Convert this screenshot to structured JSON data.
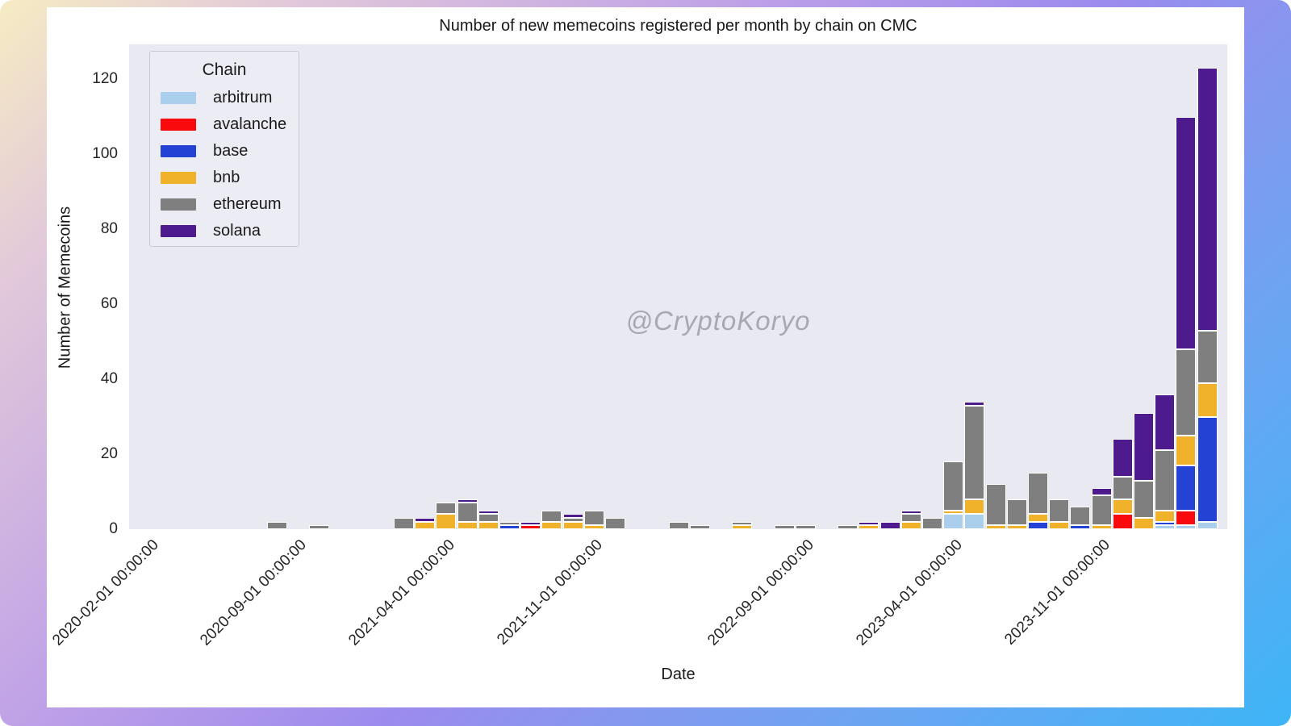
{
  "title": "Number of new memecoins registered per month by chain on CMC",
  "watermark": "@CryptoKoryo",
  "colors": {
    "plot_background": "#e9e9f2",
    "figure_background": "#ffffff",
    "frame_gradient": [
      "#f6ecc3",
      "#bd9fe8",
      "#6da4f2",
      "#3eb5f7"
    ]
  },
  "chart_data": {
    "type": "bar",
    "stacked": true,
    "title": "Number of new memecoins registered per month by chain on CMC",
    "xlabel": "Date",
    "ylabel": "Number of Memecoins",
    "ylim": [
      0,
      129
    ],
    "yticks": [
      0,
      20,
      40,
      60,
      80,
      100,
      120
    ],
    "grid": false,
    "legend_title": "Chain",
    "legend_position": "upper left",
    "chains": [
      {
        "name": "arbitrum",
        "color": "#a9cfec"
      },
      {
        "name": "avalanche",
        "color": "#f90a0c"
      },
      {
        "name": "base",
        "color": "#2443d4"
      },
      {
        "name": "bnb",
        "color": "#efb22a"
      },
      {
        "name": "ethereum",
        "color": "#7f7f7f"
      },
      {
        "name": "solana",
        "color": "#4e1b8f"
      }
    ],
    "x_axis": {
      "unit": "month",
      "range_start": "2020-02",
      "range_end": "2024-04",
      "tick_labels": [
        {
          "month": "2020-02",
          "label": "2020-02-01 00:00:00"
        },
        {
          "month": "2020-09",
          "label": "2020-09-01 00:00:00"
        },
        {
          "month": "2021-04",
          "label": "2021-04-01 00:00:00"
        },
        {
          "month": "2021-11",
          "label": "2021-11-01 00:00:00"
        },
        {
          "month": "2022-09",
          "label": "2022-09-01 00:00:00"
        },
        {
          "month": "2023-04",
          "label": "2023-04-01 00:00:00"
        },
        {
          "month": "2023-11",
          "label": "2023-11-01 00:00:00"
        }
      ]
    },
    "bars": [
      {
        "month": "2020-08",
        "segments": {
          "ethereum": 2
        }
      },
      {
        "month": "2020-10",
        "segments": {
          "ethereum": 1
        }
      },
      {
        "month": "2021-02",
        "segments": {
          "ethereum": 3
        }
      },
      {
        "month": "2021-03",
        "segments": {
          "bnb": 2,
          "solana": 1
        }
      },
      {
        "month": "2021-04",
        "segments": {
          "bnb": 4,
          "ethereum": 3
        }
      },
      {
        "month": "2021-05",
        "segments": {
          "bnb": 2,
          "ethereum": 5,
          "solana": 1
        }
      },
      {
        "month": "2021-06",
        "segments": {
          "bnb": 2,
          "ethereum": 2,
          "solana": 1
        }
      },
      {
        "month": "2021-07",
        "segments": {
          "base": 1,
          "ethereum": 1
        }
      },
      {
        "month": "2021-08",
        "segments": {
          "avalanche": 1,
          "solana": 1
        }
      },
      {
        "month": "2021-09",
        "segments": {
          "bnb": 2,
          "ethereum": 3
        }
      },
      {
        "month": "2021-10",
        "segments": {
          "bnb": 2,
          "ethereum": 1,
          "solana": 1
        }
      },
      {
        "month": "2021-11",
        "segments": {
          "bnb": 1,
          "ethereum": 4
        }
      },
      {
        "month": "2021-12",
        "segments": {
          "ethereum": 3
        }
      },
      {
        "month": "2022-03",
        "segments": {
          "ethereum": 2
        }
      },
      {
        "month": "2022-04",
        "segments": {
          "ethereum": 1
        }
      },
      {
        "month": "2022-06",
        "segments": {
          "bnb": 1,
          "ethereum": 1
        }
      },
      {
        "month": "2022-08",
        "segments": {
          "ethereum": 1
        }
      },
      {
        "month": "2022-09",
        "segments": {
          "ethereum": 1
        }
      },
      {
        "month": "2022-11",
        "segments": {
          "ethereum": 1
        }
      },
      {
        "month": "2022-12",
        "segments": {
          "bnb": 1,
          "solana": 1
        }
      },
      {
        "month": "2023-01",
        "segments": {
          "solana": 2
        }
      },
      {
        "month": "2023-02",
        "segments": {
          "bnb": 2,
          "ethereum": 2,
          "solana": 1
        }
      },
      {
        "month": "2023-03",
        "segments": {
          "ethereum": 3
        }
      },
      {
        "month": "2023-04",
        "segments": {
          "arbitrum": 4,
          "bnb": 1,
          "ethereum": 13
        }
      },
      {
        "month": "2023-05",
        "segments": {
          "arbitrum": 4,
          "bnb": 4,
          "ethereum": 25,
          "solana": 1
        }
      },
      {
        "month": "2023-06",
        "segments": {
          "bnb": 1,
          "ethereum": 11
        }
      },
      {
        "month": "2023-07",
        "segments": {
          "bnb": 1,
          "ethereum": 7
        }
      },
      {
        "month": "2023-08",
        "segments": {
          "base": 2,
          "bnb": 2,
          "ethereum": 11
        }
      },
      {
        "month": "2023-09",
        "segments": {
          "bnb": 2,
          "ethereum": 6
        }
      },
      {
        "month": "2023-10",
        "segments": {
          "base": 1,
          "ethereum": 5
        }
      },
      {
        "month": "2023-11",
        "segments": {
          "bnb": 1,
          "ethereum": 8,
          "solana": 2
        }
      },
      {
        "month": "2023-12",
        "segments": {
          "avalanche": 4,
          "bnb": 4,
          "ethereum": 6,
          "solana": 10
        }
      },
      {
        "month": "2024-01",
        "segments": {
          "bnb": 3,
          "ethereum": 10,
          "solana": 18
        }
      },
      {
        "month": "2024-02",
        "segments": {
          "arbitrum": 1,
          "base": 1,
          "bnb": 3,
          "ethereum": 16,
          "solana": 15
        }
      },
      {
        "month": "2024-03",
        "segments": {
          "arbitrum": 1,
          "avalanche": 4,
          "base": 12,
          "bnb": 8,
          "ethereum": 23,
          "solana": 62
        }
      },
      {
        "month": "2024-04",
        "segments": {
          "arbitrum": 2,
          "base": 28,
          "bnb": 9,
          "ethereum": 14,
          "solana": 70
        }
      }
    ]
  }
}
